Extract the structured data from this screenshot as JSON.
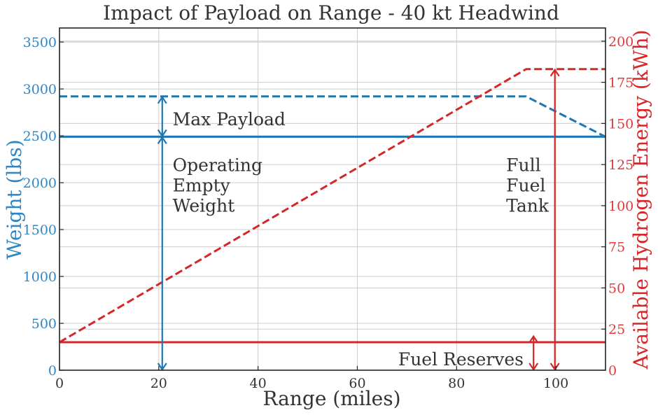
{
  "chart_data": {
    "type": "line",
    "title": "Impact of Payload on Range - 40 kt Headwind",
    "xlabel": "Range (miles)",
    "ylabel_left": "Weight (lbs)",
    "ylabel_right": "Available Hydrogen Energy (kWh)",
    "xlim": [
      0,
      110
    ],
    "ylim_left": [
      0,
      3650
    ],
    "ylim_right": [
      0,
      208
    ],
    "x_ticks": [
      0,
      20,
      40,
      60,
      80,
      100
    ],
    "y_ticks_left": [
      0,
      500,
      1000,
      1500,
      2000,
      2500,
      3000,
      3500
    ],
    "y_ticks_right": [
      0,
      25,
      50,
      75,
      100,
      125,
      150,
      175,
      200
    ],
    "grid": true,
    "colors": {
      "blue": "#1f77b4",
      "red": "#d62728",
      "left_tick": "#2f86c4",
      "right_tick": "#e03a3a"
    },
    "series": [
      {
        "axis": "left",
        "color": "#1f77b4",
        "style": "dashed",
        "x": [
          0,
          94,
          110
        ],
        "y": [
          2920,
          2920,
          2490
        ]
      },
      {
        "axis": "left",
        "color": "#1f77b4",
        "style": "solid",
        "x": [
          0,
          110
        ],
        "y": [
          2490,
          2490
        ]
      },
      {
        "axis": "right",
        "color": "#d62728",
        "style": "dashed",
        "x": [
          0,
          94,
          110
        ],
        "y": [
          17,
          183,
          183
        ]
      },
      {
        "axis": "right",
        "color": "#d62728",
        "style": "solid",
        "x": [
          0,
          110
        ],
        "y": [
          17,
          17
        ]
      }
    ],
    "arrows": [
      {
        "axis": "left",
        "color": "#1f77b4",
        "x": 20.7,
        "y_from": 2490,
        "y_to": 2920
      },
      {
        "axis": "left",
        "color": "#1f77b4",
        "x": 20.7,
        "y_from": 0,
        "y_to": 2490
      },
      {
        "axis": "right",
        "color": "#d62728",
        "x": 95.5,
        "y_from": 0,
        "y_to": 21
      },
      {
        "axis": "right",
        "color": "#d62728",
        "x": 99.8,
        "y_from": 0,
        "y_to": 183
      }
    ],
    "annotations": [
      {
        "lines": [
          "Max Payload"
        ],
        "x": 22.8,
        "axis": "left",
        "y": 2680,
        "anchor": "start"
      },
      {
        "lines": [
          "Operating",
          "Empty",
          "Weight"
        ],
        "x": 22.8,
        "axis": "left",
        "y": 2190,
        "anchor": "start"
      },
      {
        "lines": [
          "Full",
          "Fuel",
          "Tank"
        ],
        "x": 90,
        "axis": "left",
        "y": 2190,
        "anchor": "start"
      },
      {
        "lines": [
          "Fuel Reserves"
        ],
        "x": 93.5,
        "axis": "left",
        "y": 120,
        "anchor": "end"
      }
    ]
  }
}
